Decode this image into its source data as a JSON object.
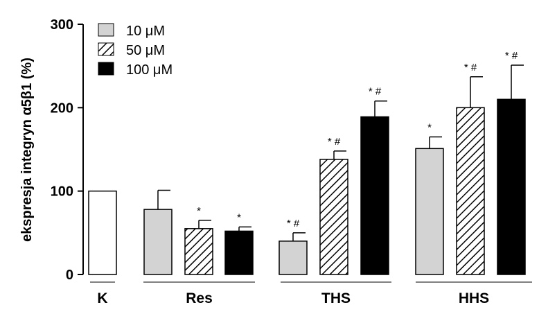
{
  "chart_data": {
    "type": "bar",
    "ylabel": "ekspresja integryn α5β1 (%)",
    "ylim": [
      0,
      300
    ],
    "yticks": [
      "0",
      "100",
      "200",
      "300"
    ],
    "legend": {
      "placement": "top-left",
      "entries": [
        {
          "label": "10 μM",
          "fill": "gray"
        },
        {
          "label": "50 μM",
          "fill": "hatch"
        },
        {
          "label": "100 μM",
          "fill": "black"
        }
      ]
    },
    "groups": [
      {
        "label": "K",
        "bars": [
          {
            "series": "control",
            "value": 100,
            "error": 0,
            "sig": ""
          }
        ]
      },
      {
        "label": "Res",
        "bars": [
          {
            "series": "10 μM",
            "value": 78,
            "error": 23,
            "sig": ""
          },
          {
            "series": "50 μM",
            "value": 55,
            "error": 10,
            "sig": "*"
          },
          {
            "series": "100 μM",
            "value": 52,
            "error": 5,
            "sig": "*"
          }
        ]
      },
      {
        "label": "THS",
        "bars": [
          {
            "series": "10 μM",
            "value": 40,
            "error": 10,
            "sig": "* #"
          },
          {
            "series": "50 μM",
            "value": 138,
            "error": 10,
            "sig": "* #"
          },
          {
            "series": "100 μM",
            "value": 189,
            "error": 19,
            "sig": "* #"
          }
        ]
      },
      {
        "label": "HHS",
        "bars": [
          {
            "series": "10 μM",
            "value": 151,
            "error": 14,
            "sig": "*"
          },
          {
            "series": "50 μM",
            "value": 200,
            "error": 37,
            "sig": "* #"
          },
          {
            "series": "100 μM",
            "value": 210,
            "error": 41,
            "sig": "* #"
          }
        ]
      }
    ],
    "colors": {
      "control": "#ffffff",
      "10 μM": "#d3d3d3",
      "50 μM": "hatch",
      "100 μM": "#000000"
    }
  }
}
